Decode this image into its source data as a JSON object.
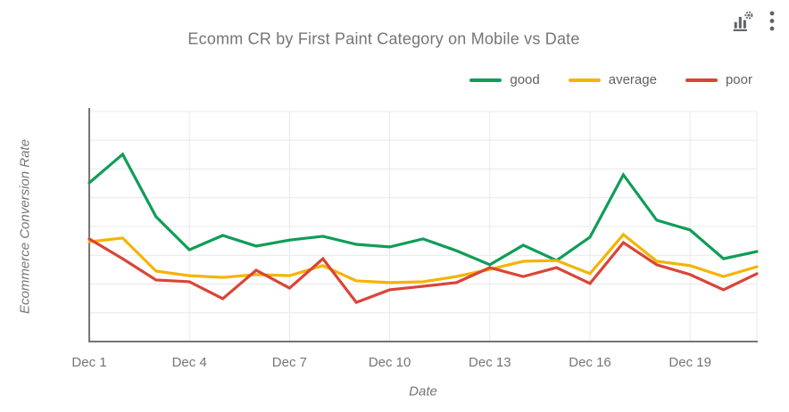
{
  "title": "Ecomm CR by First Paint Category on Mobile vs Date",
  "toolbar": {
    "icons": [
      {
        "name": "chart-settings-icon"
      },
      {
        "name": "kebab-menu-icon"
      }
    ]
  },
  "legend": {
    "items": [
      {
        "label": "good",
        "color": "#0F9D58"
      },
      {
        "label": "average",
        "color": "#F4B400"
      },
      {
        "label": "poor",
        "color": "#DB4437"
      }
    ]
  },
  "axes": {
    "x_title": "Date",
    "y_title": "Ecommerce Conversion Rate"
  },
  "colors": {
    "background": "#ffffff",
    "title_text": "#757575",
    "tick_text": "#757575",
    "legend_text": "#616161",
    "axis_line": "#757575",
    "gridline": "#e8e8e8",
    "icon": "#5f6368",
    "good": "#0F9D58",
    "average": "#F4B400",
    "poor": "#DB4437"
  },
  "chart_data": {
    "type": "line",
    "title": "Ecomm CR by First Paint Category on Mobile vs Date",
    "xlabel": "Date",
    "ylabel": "Ecommerce Conversion Rate",
    "x": [
      "Dec 1",
      "Dec 2",
      "Dec 3",
      "Dec 4",
      "Dec 5",
      "Dec 6",
      "Dec 7",
      "Dec 8",
      "Dec 9",
      "Dec 10",
      "Dec 11",
      "Dec 12",
      "Dec 13",
      "Dec 14",
      "Dec 15",
      "Dec 16",
      "Dec 17",
      "Dec 18",
      "Dec 19",
      "Dec 20",
      "Dec 21"
    ],
    "x_tick_labels": [
      "Dec 1",
      "Dec 4",
      "Dec 7",
      "Dec 10",
      "Dec 13",
      "Dec 16",
      "Dec 19"
    ],
    "tick_indices": [
      0,
      3,
      6,
      9,
      12,
      15,
      18
    ],
    "y_tick_labels": [],
    "ylim": [
      0,
      8
    ],
    "grid": true,
    "legend_position": "top-right",
    "series": [
      {
        "name": "good",
        "color": "#0F9D58",
        "values": [
          5.52,
          6.51,
          4.34,
          3.19,
          3.69,
          3.32,
          3.53,
          3.66,
          3.38,
          3.29,
          3.57,
          3.16,
          2.67,
          3.35,
          2.82,
          3.63,
          5.8,
          4.22,
          3.88,
          2.88,
          3.13
        ]
      },
      {
        "name": "average",
        "color": "#F4B400",
        "values": [
          3.47,
          3.6,
          2.45,
          2.29,
          2.23,
          2.33,
          2.29,
          2.64,
          2.11,
          2.05,
          2.08,
          2.26,
          2.51,
          2.79,
          2.82,
          2.36,
          3.72,
          2.79,
          2.64,
          2.26,
          2.6
        ]
      },
      {
        "name": "poor",
        "color": "#DB4437",
        "values": [
          3.57,
          2.88,
          2.14,
          2.08,
          1.49,
          2.48,
          1.86,
          2.88,
          1.36,
          1.8,
          1.92,
          2.05,
          2.57,
          2.26,
          2.57,
          2.02,
          3.44,
          2.67,
          2.33,
          1.8,
          2.36
        ]
      }
    ]
  }
}
